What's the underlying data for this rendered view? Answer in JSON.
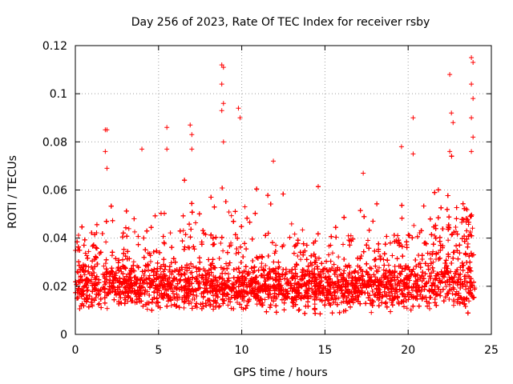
{
  "chart_data": {
    "type": "scatter",
    "title": "Day 256 of 2023, Rate Of TEC Index for receiver rsby",
    "xlabel": "GPS time / hours",
    "ylabel": "ROTI / TECUs",
    "xlim": [
      0,
      25
    ],
    "ylim": [
      0,
      0.12
    ],
    "xticks": [
      0,
      5,
      10,
      15,
      20,
      25
    ],
    "xtick_labels": [
      "0",
      "5",
      "10",
      "15",
      "20",
      "25"
    ],
    "yticks": [
      0,
      0.02,
      0.04,
      0.06,
      0.08,
      0.1,
      0.12
    ],
    "ytick_labels": [
      "0",
      "0.02",
      "0.04",
      "0.06",
      "0.08",
      "0.1",
      "0.12"
    ],
    "grid": true,
    "marker": "+",
    "color": "#ff0000",
    "series": [
      {
        "name": "ROTI",
        "approx_points": 9000,
        "dense_band_range": [
          0.01,
          0.03
        ],
        "notable_points": [
          {
            "x": 1.8,
            "y": 0.085
          },
          {
            "x": 1.9,
            "y": 0.085
          },
          {
            "x": 1.8,
            "y": 0.076
          },
          {
            "x": 1.9,
            "y": 0.069
          },
          {
            "x": 4.0,
            "y": 0.077
          },
          {
            "x": 5.5,
            "y": 0.086
          },
          {
            "x": 5.5,
            "y": 0.077
          },
          {
            "x": 6.9,
            "y": 0.087
          },
          {
            "x": 7.0,
            "y": 0.083
          },
          {
            "x": 7.0,
            "y": 0.077
          },
          {
            "x": 8.8,
            "y": 0.112
          },
          {
            "x": 8.9,
            "y": 0.111
          },
          {
            "x": 8.8,
            "y": 0.104
          },
          {
            "x": 8.9,
            "y": 0.096
          },
          {
            "x": 8.8,
            "y": 0.093
          },
          {
            "x": 8.9,
            "y": 0.08
          },
          {
            "x": 9.8,
            "y": 0.094
          },
          {
            "x": 9.9,
            "y": 0.09
          },
          {
            "x": 11.9,
            "y": 0.072
          },
          {
            "x": 17.3,
            "y": 0.067
          },
          {
            "x": 19.6,
            "y": 0.078
          },
          {
            "x": 20.3,
            "y": 0.09
          },
          {
            "x": 20.3,
            "y": 0.075
          },
          {
            "x": 22.5,
            "y": 0.108
          },
          {
            "x": 22.6,
            "y": 0.092
          },
          {
            "x": 22.7,
            "y": 0.088
          },
          {
            "x": 22.5,
            "y": 0.076
          },
          {
            "x": 23.8,
            "y": 0.115
          },
          {
            "x": 23.9,
            "y": 0.113
          },
          {
            "x": 23.8,
            "y": 0.104
          },
          {
            "x": 23.9,
            "y": 0.098
          },
          {
            "x": 23.8,
            "y": 0.09
          },
          {
            "x": 23.9,
            "y": 0.082
          },
          {
            "x": 23.8,
            "y": 0.076
          }
        ]
      }
    ]
  }
}
